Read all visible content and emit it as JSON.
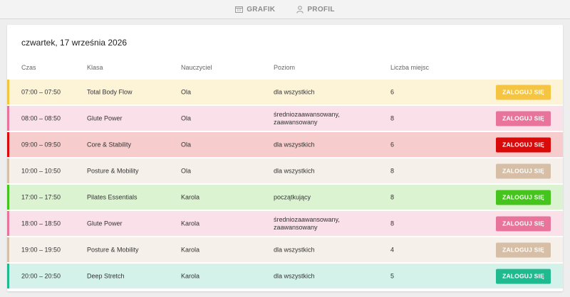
{
  "nav": {
    "items": [
      {
        "label": "GRAFIK",
        "icon": "calendar-icon"
      },
      {
        "label": "PROFIL",
        "icon": "user-icon"
      }
    ]
  },
  "schedule": {
    "date": "czwartek, 17 września 2026",
    "columns": {
      "time": "Czas",
      "class": "Klasa",
      "teacher": "Nauczyciel",
      "level": "Poziom",
      "places": "Liczba miejsc"
    },
    "rows": [
      {
        "time": "07:00 – 07:50",
        "class": "Total Body Flow",
        "teacher": "Ola",
        "level": "dla wszystkich",
        "places": "6",
        "button": "ZALOGUJ SIĘ",
        "bg": "#fdf4d8",
        "accent": "#f5c542",
        "btn": "#f5c542"
      },
      {
        "time": "08:00 – 08:50",
        "class": "Glute Power",
        "teacher": "Ola",
        "level": "średniozaawansowany, zaawansowany",
        "places": "8",
        "button": "ZALOGUJ SIĘ",
        "bg": "#fae0e8",
        "accent": "#e8739b",
        "btn": "#e8739b"
      },
      {
        "time": "09:00 – 09:50",
        "class": "Core & Stability",
        "teacher": "Ola",
        "level": "dla wszystkich",
        "places": "6",
        "button": "ZALOGUJ SIĘ",
        "bg": "#f6cccc",
        "accent": "#d80a0a",
        "btn": "#d80a0a"
      },
      {
        "time": "10:00 – 10:50",
        "class": "Posture & Mobility",
        "teacher": "Ola",
        "level": "dla wszystkich",
        "places": "8",
        "button": "ZALOGUJ SIĘ",
        "bg": "#f5f0ea",
        "accent": "#d6bfa6",
        "btn": "#d6bfa6"
      },
      {
        "time": "17:00 – 17:50",
        "class": "Pilates Essentials",
        "teacher": "Karola",
        "level": "początkujący",
        "places": "8",
        "button": "ZALOGUJ SIĘ",
        "bg": "#dcf3d2",
        "accent": "#46c41e",
        "btn": "#46c41e"
      },
      {
        "time": "18:00 – 18:50",
        "class": "Glute Power",
        "teacher": "Karola",
        "level": "średniozaawansowany, zaawansowany",
        "places": "8",
        "button": "ZALOGUJ SIĘ",
        "bg": "#fae0e8",
        "accent": "#e8739b",
        "btn": "#e8739b"
      },
      {
        "time": "19:00 – 19:50",
        "class": "Posture & Mobility",
        "teacher": "Karola",
        "level": "dla wszystkich",
        "places": "4",
        "button": "ZALOGUJ SIĘ",
        "bg": "#f5f0ea",
        "accent": "#d6bfa6",
        "btn": "#d6bfa6"
      },
      {
        "time": "20:00 – 20:50",
        "class": "Deep Stretch",
        "teacher": "Karola",
        "level": "dla wszystkich",
        "places": "5",
        "button": "ZALOGUJ SIĘ",
        "bg": "#d4f2ea",
        "accent": "#1fba8f",
        "btn": "#1fba8f"
      }
    ]
  }
}
